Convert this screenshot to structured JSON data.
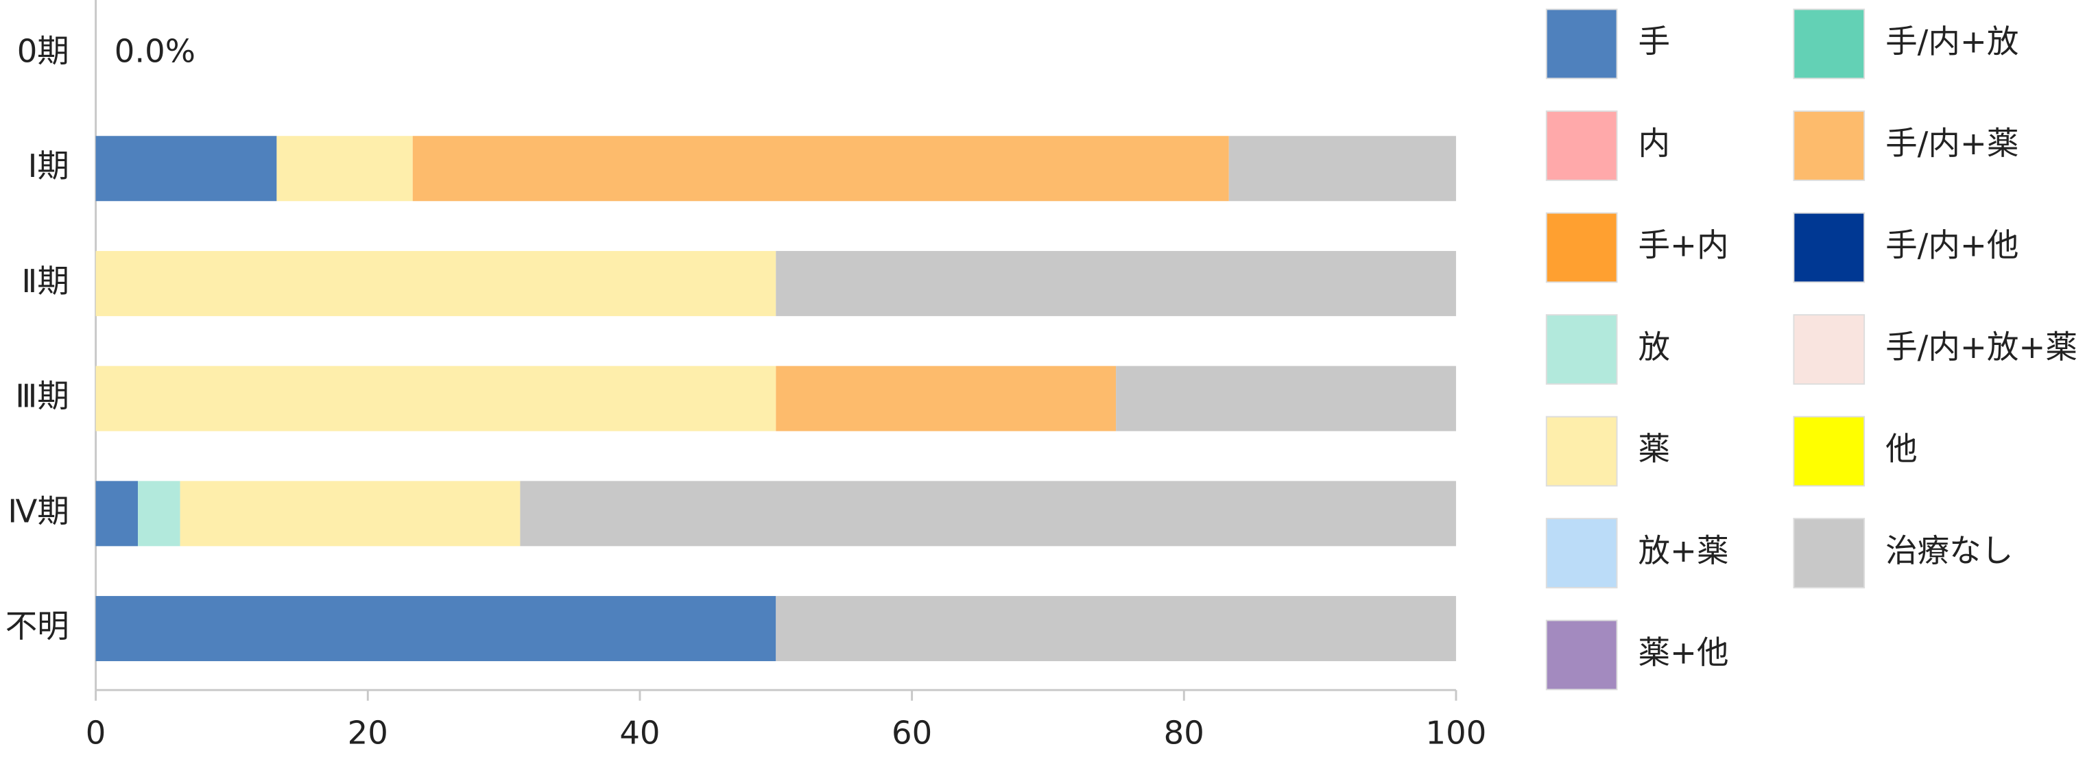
{
  "chart_data": {
    "type": "stacked-barh",
    "categories": [
      "0期",
      "Ⅰ期",
      "Ⅱ期",
      "Ⅲ期",
      "Ⅳ期",
      "不明"
    ],
    "annotation": "0.0%",
    "xlim": [
      0,
      100
    ],
    "xticks": [
      0,
      20,
      40,
      60,
      80,
      100
    ],
    "series": [
      {
        "name": "手",
        "color": "#4f81bd",
        "values": [
          0,
          13.3,
          0,
          0,
          3.1,
          50
        ]
      },
      {
        "name": "内",
        "color": "#ffa9aa",
        "values": [
          0,
          0,
          0,
          0,
          0,
          0
        ]
      },
      {
        "name": "手+内",
        "color": "#ffa030",
        "values": [
          0,
          0,
          0,
          0,
          0,
          0
        ]
      },
      {
        "name": "放",
        "color": "#b2e9dc",
        "values": [
          0,
          0,
          0,
          0,
          3.1,
          0
        ]
      },
      {
        "name": "薬",
        "color": "#feeeab",
        "values": [
          0,
          10,
          50,
          50,
          25,
          0
        ]
      },
      {
        "name": "放+薬",
        "color": "#bbdcf8",
        "values": [
          0,
          0,
          0,
          0,
          0,
          0
        ]
      },
      {
        "name": "薬+他",
        "color": "#a38abf",
        "values": [
          0,
          0,
          0,
          0,
          0,
          0
        ]
      },
      {
        "name": "手/内+放",
        "color": "#63d1b5",
        "values": [
          0,
          0,
          0,
          0,
          0,
          0
        ]
      },
      {
        "name": "手/内+薬",
        "color": "#fdbb6c",
        "values": [
          0,
          60,
          0,
          25,
          0,
          0
        ]
      },
      {
        "name": "手/内+他",
        "color": "#003893",
        "values": [
          0,
          0,
          0,
          0,
          0,
          0
        ]
      },
      {
        "name": "手/内+放+薬",
        "color": "#f9e4df",
        "values": [
          0,
          0,
          0,
          0,
          0,
          0
        ]
      },
      {
        "name": "他",
        "color": "#ffff00",
        "values": [
          0,
          0,
          0,
          0,
          0,
          0
        ]
      },
      {
        "name": "治療なし",
        "color": "#c8c8c8",
        "values": [
          0,
          16.7,
          50,
          25,
          68.8,
          50
        ]
      }
    ]
  }
}
